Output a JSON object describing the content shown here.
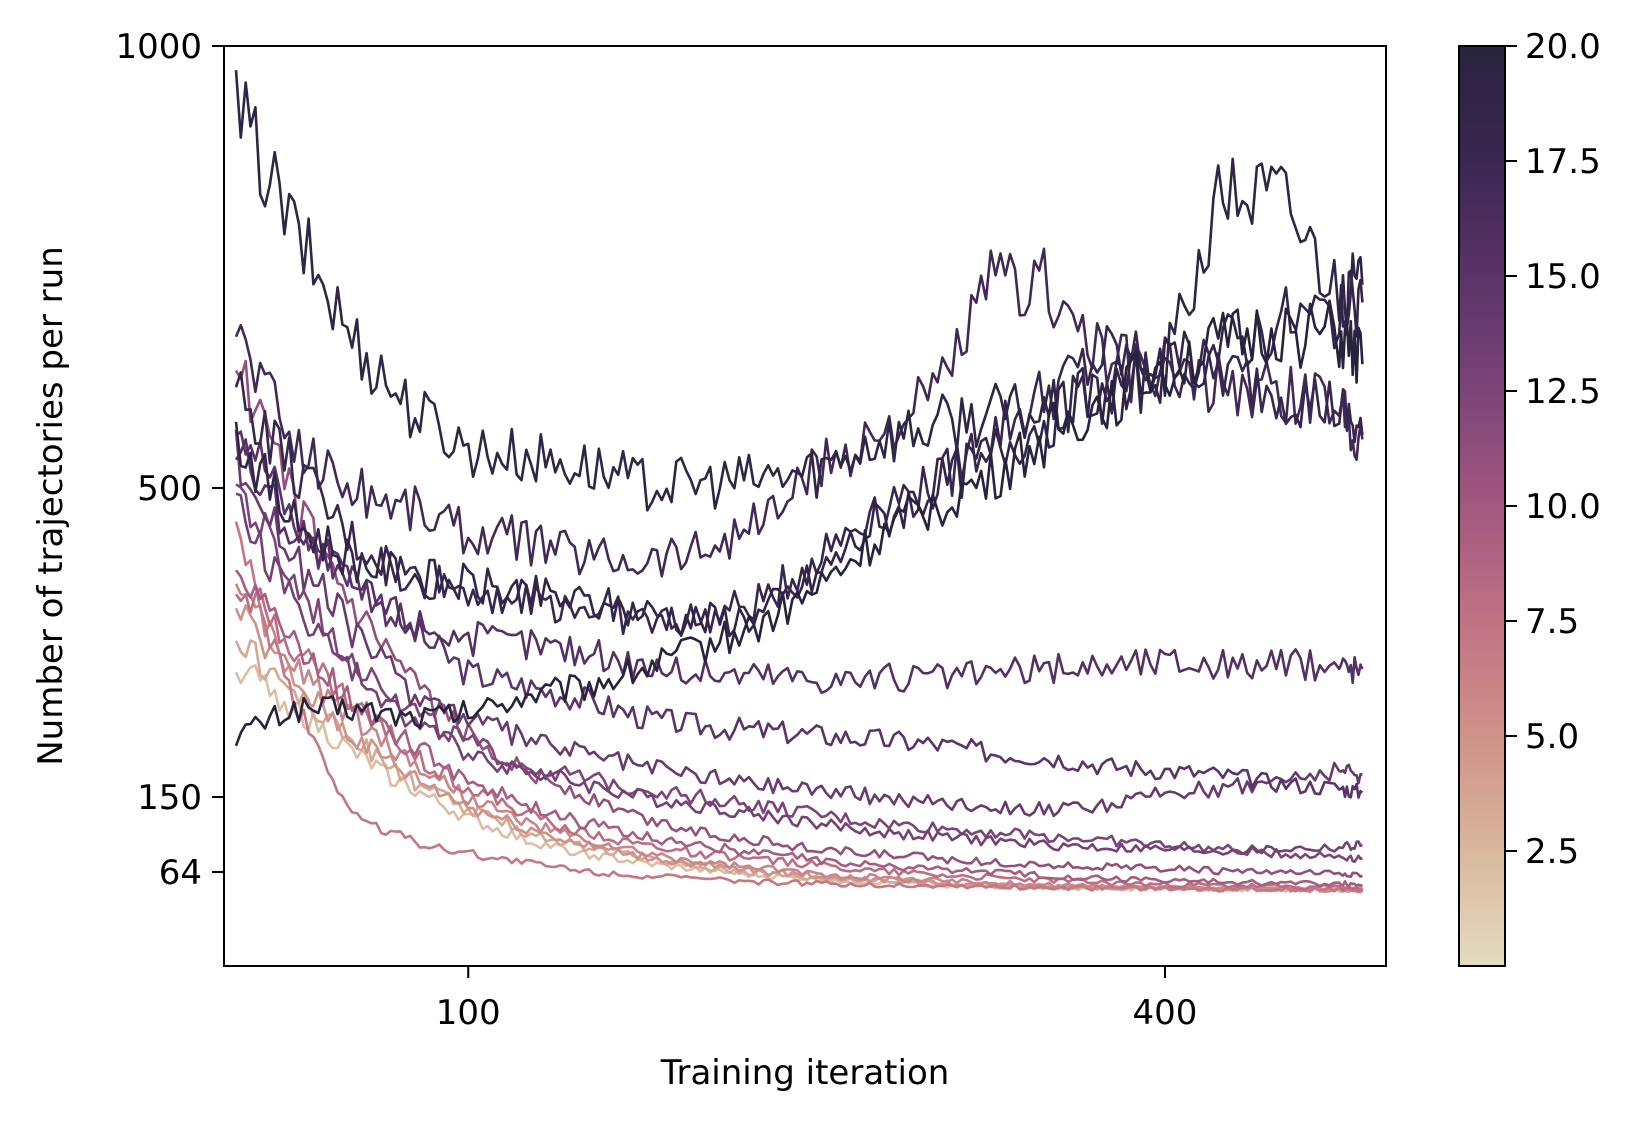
{
  "chart_data": {
    "type": "line",
    "title": "",
    "xlabel": "Training iteration",
    "ylabel": "Number of trajectories per run",
    "xlim": [
      0,
      490
    ],
    "ylim": [
      0,
      1000
    ],
    "x_ticks": [
      100,
      400
    ],
    "x_tick_labels": [
      "100",
      "400"
    ],
    "y_ticks": [
      64,
      150,
      500,
      1000
    ],
    "y_tick_labels": [
      "64",
      "150",
      "500",
      "1000"
    ],
    "grid": false,
    "legend": "none",
    "colorbar": {
      "label": "",
      "range": [
        0,
        20
      ],
      "ticks": [
        2.5,
        5.0,
        7.5,
        10.0,
        12.5,
        15.0,
        17.5,
        20.0
      ],
      "tick_labels": [
        "2.5",
        "5.0",
        "7.5",
        "10.0",
        "12.5",
        "15.0",
        "17.5",
        "20.0"
      ],
      "colors": [
        "#e4dcc2",
        "#d9b79d",
        "#cf9289",
        "#c17283",
        "#a2587f",
        "#7c4478",
        "#5a3368",
        "#3b2752",
        "#27233d"
      ]
    },
    "x": [
      0,
      25,
      50,
      75,
      100,
      125,
      150,
      175,
      200,
      225,
      250,
      275,
      300,
      325,
      350,
      375,
      400,
      425,
      450,
      475,
      485
    ],
    "series": [
      {
        "color_value": 20.0,
        "values": [
          220,
          250,
          250,
          240,
          245,
          265,
          275,
          295,
          320,
          345,
          385,
          440,
          480,
          510,
          560,
          600,
          640,
          660,
          680,
          670,
          640
        ]
      },
      {
        "color_value": 19.0,
        "values": [
          930,
          790,
          670,
          590,
          545,
          535,
          525,
          505,
          505,
          510,
          520,
          555,
          570,
          585,
          585,
          610,
          635,
          835,
          830,
          720,
          730
        ]
      },
      {
        "color_value": 18.5,
        "values": [
          560,
          460,
          420,
          400,
          390,
          380,
          370,
          360,
          350,
          355,
          400,
          460,
          500,
          540,
          580,
          610,
          630,
          660,
          690,
          700,
          710
        ]
      },
      {
        "color_value": 18.0,
        "values": [
          610,
          520,
          440,
          400,
          385,
          375,
          365,
          350,
          350,
          370,
          420,
          480,
          500,
          560,
          610,
          650,
          640,
          630,
          610,
          590,
          560
        ]
      },
      {
        "color_value": 17.0,
        "values": [
          680,
          550,
          500,
          480,
          450,
          440,
          425,
          420,
          430,
          460,
          520,
          560,
          600,
          730,
          730,
          640,
          625,
          615,
          605,
          595,
          555
        ]
      },
      {
        "color_value": 15.5,
        "values": [
          550,
          450,
          390,
          350,
          330,
          325,
          315,
          300,
          290,
          290,
          285,
          285,
          285,
          290,
          295,
          300,
          305,
          300,
          300,
          300,
          295
        ]
      },
      {
        "color_value": 15.0,
        "values": [
          590,
          460,
          400,
          340,
          290,
          275,
          260,
          240,
          230,
          225,
          220,
          215,
          210,
          200,
          195,
          185,
          180,
          175,
          165,
          160,
          155
        ]
      },
      {
        "color_value": 14.0,
        "values": [
          540,
          420,
          340,
          270,
          240,
          215,
          200,
          185,
          175,
          165,
          160,
          150,
          145,
          140,
          135,
          140,
          155,
          160,
          170,
          180,
          175
        ]
      },
      {
        "color_value": 13.0,
        "values": [
          480,
          370,
          290,
          240,
          200,
          180,
          165,
          150,
          140,
          130,
          120,
          110,
          105,
          100,
          95,
          92,
          90,
          88,
          90,
          92,
          95
        ]
      },
      {
        "color_value": 12.5,
        "values": [
          500,
          390,
          310,
          250,
          210,
          185,
          170,
          160,
          150,
          140,
          130,
          120,
          115,
          110,
          105,
          100,
          95,
          90,
          85,
          82,
          80
        ]
      },
      {
        "color_value": 11.0,
        "values": [
          640,
          480,
          360,
          280,
          220,
          180,
          150,
          125,
          110,
          100,
          90,
          85,
          80,
          75,
          72,
          70,
          68,
          65,
          63,
          62,
          60
        ]
      },
      {
        "color_value": 9.5,
        "values": [
          420,
          320,
          260,
          210,
          170,
          140,
          120,
          105,
          95,
          85,
          78,
          72,
          68,
          64,
          60,
          57,
          55,
          53,
          52,
          51,
          50
        ]
      },
      {
        "color_value": 8.0,
        "values": [
          400,
          320,
          255,
          200,
          160,
          130,
          110,
          95,
          85,
          78,
          72,
          66,
          62,
          58,
          55,
          52,
          50,
          49,
          48,
          47,
          46
        ]
      },
      {
        "color_value": 7.0,
        "values": [
          440,
          260,
          130,
          100,
          85,
          75,
          65,
          60,
          56,
          53,
          51,
          50,
          49,
          48,
          47,
          46,
          46,
          45,
          45,
          45,
          45
        ]
      },
      {
        "color_value": 6.0,
        "values": [
          380,
          300,
          240,
          190,
          150,
          120,
          100,
          85,
          75,
          68,
          62,
          58,
          55,
          52,
          50,
          48,
          47,
          46,
          45,
          45,
          44
        ]
      },
      {
        "color_value": 5.0,
        "values": [
          360,
          280,
          220,
          175,
          140,
          115,
          95,
          82,
          72,
          65,
          60,
          56,
          53,
          50,
          48,
          47,
          46,
          45,
          45,
          44,
          44
        ]
      },
      {
        "color_value": 3.5,
        "values": [
          330,
          270,
          215,
          170,
          135,
          110,
          92,
          80,
          70,
          63,
          58,
          55,
          52,
          50,
          48,
          47,
          46,
          46,
          45,
          45,
          45
        ]
      },
      {
        "color_value": 2.0,
        "values": [
          300,
          250,
          200,
          160,
          125,
          100,
          85,
          74,
          66,
          60,
          56,
          53,
          50,
          48,
          47,
          46,
          46,
          45,
          45,
          45,
          45
        ]
      }
    ]
  }
}
